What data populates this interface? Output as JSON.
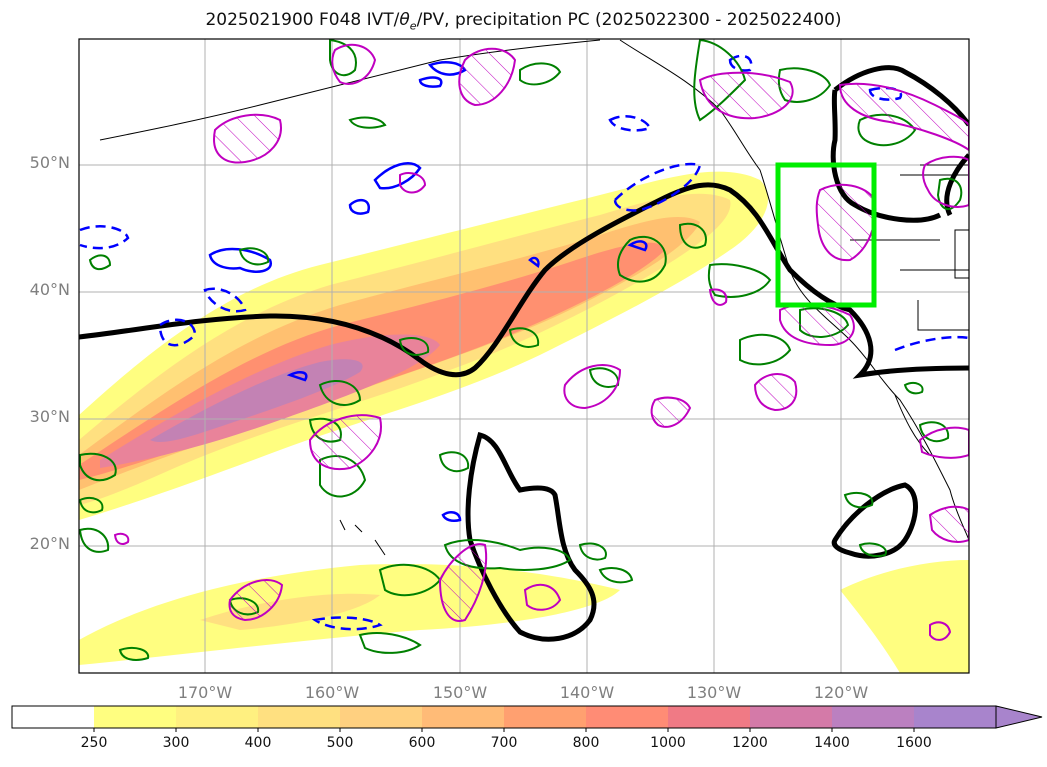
{
  "title": {
    "prefix": "2025021900 F048 IVT/",
    "theta": "θ",
    "theta_sub": "e",
    "suffix": "/PV, precipitation PC (2025022300 - 2025022400)"
  },
  "map": {
    "projection": "equirectangular",
    "lon_range": [
      -180,
      -110
    ],
    "lat_range": [
      10,
      60
    ],
    "lat_labels": [
      "20°N",
      "30°N",
      "40°N",
      "50°N"
    ],
    "lon_labels": [
      "170°W",
      "160°W",
      "150°W",
      "140°W",
      "130°W",
      "120°W"
    ],
    "target_box": {
      "lon": [
        -125,
        -117.5
      ],
      "lat": [
        39,
        50
      ],
      "color": "#00ee00"
    }
  },
  "colorbar": {
    "tick_labels": [
      "250",
      "300",
      "400",
      "500",
      "600",
      "700",
      "800",
      "1000",
      "1200",
      "1400",
      "1600"
    ],
    "colors": [
      "#ffffff",
      "#fffe80",
      "#fff080",
      "#ffe080",
      "#ffd080",
      "#ffbb77",
      "#ffa070",
      "#ff8c75",
      "#f07a85",
      "#d47aa8",
      "#bb80c0",
      "#a884cc"
    ],
    "extend": "max"
  },
  "legend_colors": {
    "pv_contour": "#000000",
    "theta_e_solid": "#0000ff",
    "precip_pc_green": "#008000",
    "precip_pc_magenta": "#c000c0"
  }
}
